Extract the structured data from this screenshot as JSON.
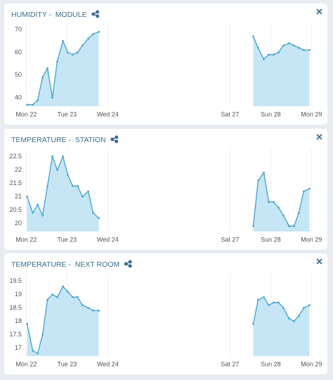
{
  "chart_data": [
    {
      "type": "line",
      "title": "HUMIDITY -  MODULE",
      "color": "#4aa6d2",
      "fill": "#c6e6f6",
      "grid": true,
      "x": [
        22.02,
        22.16,
        22.28,
        22.4,
        22.52,
        22.64,
        22.76,
        22.9,
        23.02,
        23.14,
        23.26,
        23.38,
        23.52,
        23.64,
        23.78,
        null,
        27.57,
        27.69,
        27.83,
        27.95,
        28.07,
        28.19,
        28.31,
        28.45,
        28.57,
        28.69,
        28.81,
        28.95
      ],
      "values": [
        37,
        37,
        39,
        49,
        53,
        40,
        56,
        65,
        60,
        59,
        60,
        63,
        66,
        68,
        69,
        null,
        67,
        62,
        57,
        59,
        59,
        60,
        63,
        64,
        63,
        62,
        61,
        61
      ],
      "xlim": [
        21.7,
        29.2
      ],
      "xticks": [
        {
          "value": 22,
          "label": "Mon 22"
        },
        {
          "value": 23,
          "label": "Tue 23"
        },
        {
          "value": 24,
          "label": "Wed 24"
        },
        {
          "value": 27,
          "label": "Sat 27"
        },
        {
          "value": 28,
          "label": "Sun 28"
        },
        {
          "value": 29,
          "label": "Mon 29"
        }
      ],
      "ylim": [
        36.3,
        72.8
      ],
      "yticks": [
        40,
        50,
        60,
        70
      ]
    },
    {
      "type": "line",
      "title": "TEMPERATURE -  STATION",
      "color": "#4aa6d2",
      "fill": "#c6e6f6",
      "grid": true,
      "x": [
        22.02,
        22.16,
        22.28,
        22.4,
        22.52,
        22.64,
        22.76,
        22.9,
        23.02,
        23.14,
        23.26,
        23.38,
        23.52,
        23.64,
        23.78,
        null,
        27.57,
        27.69,
        27.83,
        27.95,
        28.07,
        28.19,
        28.31,
        28.45,
        28.57,
        28.69,
        28.81,
        28.95
      ],
      "values": [
        21.0,
        20.4,
        20.7,
        20.3,
        21.4,
        22.5,
        22.0,
        22.5,
        21.8,
        21.4,
        21.4,
        21.0,
        21.2,
        20.4,
        20.2,
        null,
        19.9,
        21.6,
        21.9,
        20.8,
        20.8,
        20.6,
        20.3,
        19.9,
        19.9,
        20.4,
        21.2,
        21.3
      ],
      "xlim": [
        21.7,
        29.2
      ],
      "xticks": [
        {
          "value": 22,
          "label": "Mon 22"
        },
        {
          "value": 23,
          "label": "Tue 23"
        },
        {
          "value": 24,
          "label": "Wed 24"
        },
        {
          "value": 27,
          "label": "Sat 27"
        },
        {
          "value": 28,
          "label": "Sun 28"
        },
        {
          "value": 29,
          "label": "Mon 29"
        }
      ],
      "ylim": [
        19.7,
        22.8
      ],
      "yticks": [
        20,
        20.5,
        21,
        21.5,
        22,
        22.5
      ]
    },
    {
      "type": "line",
      "title": "TEMPERATURE -  NEXT ROOM",
      "color": "#4aa6d2",
      "fill": "#c6e6f6",
      "grid": true,
      "x": [
        22.02,
        22.16,
        22.28,
        22.4,
        22.52,
        22.64,
        22.76,
        22.9,
        23.02,
        23.14,
        23.26,
        23.38,
        23.52,
        23.64,
        23.78,
        null,
        27.57,
        27.69,
        27.83,
        27.95,
        28.07,
        28.19,
        28.31,
        28.45,
        28.57,
        28.69,
        28.81,
        28.95
      ],
      "values": [
        17.9,
        16.9,
        16.8,
        17.5,
        18.8,
        19.0,
        18.9,
        19.3,
        19.1,
        18.9,
        18.9,
        18.6,
        18.5,
        18.4,
        18.4,
        null,
        17.9,
        18.8,
        18.9,
        18.6,
        18.7,
        18.7,
        18.5,
        18.1,
        18.0,
        18.2,
        18.5,
        18.6
      ],
      "xlim": [
        21.7,
        29.2
      ],
      "xticks": [
        {
          "value": 22,
          "label": "Mon 22"
        },
        {
          "value": 23,
          "label": "Tue 23"
        },
        {
          "value": 24,
          "label": "Wed 24"
        },
        {
          "value": 27,
          "label": "Sat 27"
        },
        {
          "value": 28,
          "label": "Sun 28"
        },
        {
          "value": 29,
          "label": "Mon 29"
        }
      ],
      "ylim": [
        16.7,
        19.8
      ],
      "yticks": [
        17,
        17.5,
        18,
        18.5,
        19,
        19.5
      ]
    }
  ]
}
